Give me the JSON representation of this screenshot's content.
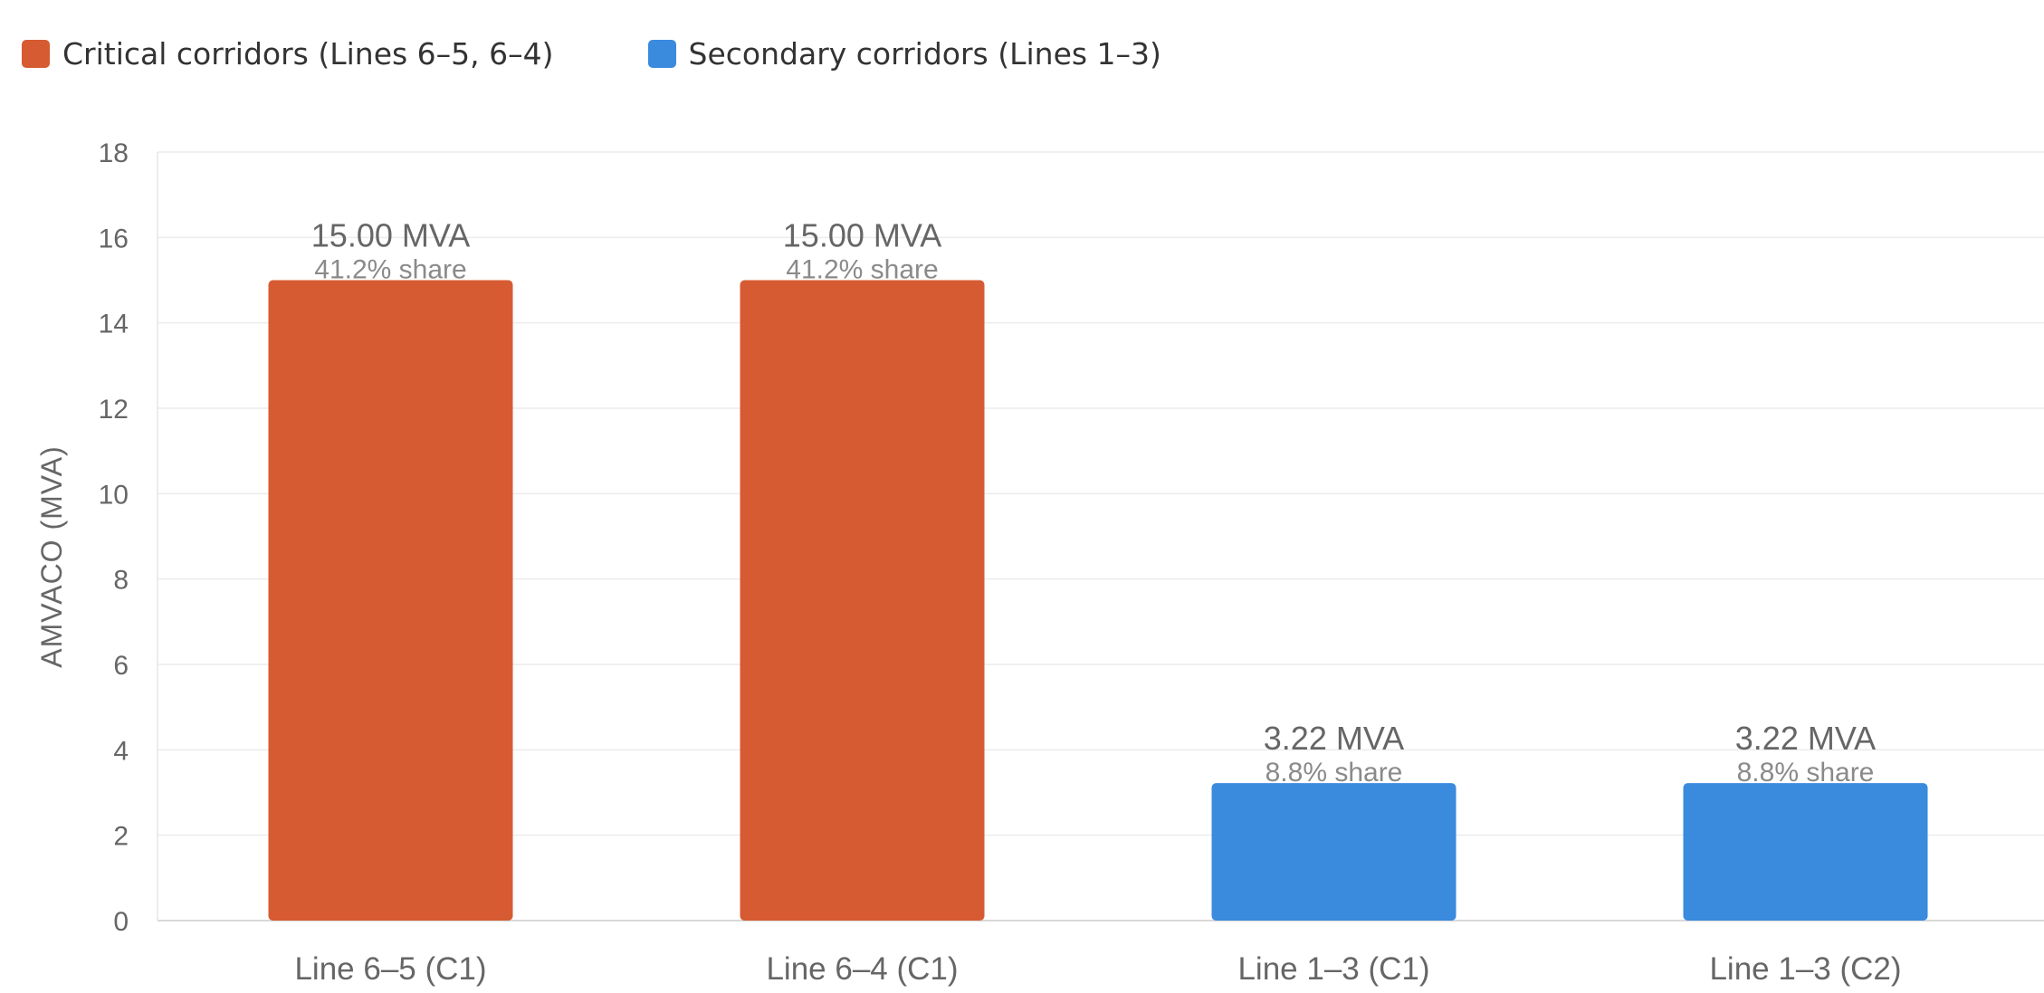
{
  "chart_data": {
    "type": "bar",
    "title": "",
    "xlabel": "",
    "ylabel": "AMVACO (MVA)",
    "ylim": [
      0,
      18
    ],
    "yticks": [
      0,
      2,
      4,
      6,
      8,
      10,
      12,
      14,
      16,
      18
    ],
    "grid": true,
    "legend_position": "top-left",
    "categories": [
      "Line 6–5 (C1)",
      "Line 6–4 (C1)",
      "Line 1–3 (C1)",
      "Line 1–3 (C2)"
    ],
    "values": [
      15.0,
      15.0,
      3.22,
      3.22
    ],
    "value_labels": [
      "15.00 MVA",
      "15.00 MVA",
      "3.22 MVA",
      "3.22 MVA"
    ],
    "share_labels": [
      "41.2% share",
      "41.2% share",
      "8.8% share",
      "8.8% share"
    ],
    "bar_group": [
      0,
      0,
      1,
      1
    ],
    "legend": [
      {
        "label": "Critical corridors (Lines 6–5, 6–4)",
        "color": "#d75b32"
      },
      {
        "label": "Secondary corridors (Lines 1–3)",
        "color": "#3a8ade"
      }
    ]
  }
}
